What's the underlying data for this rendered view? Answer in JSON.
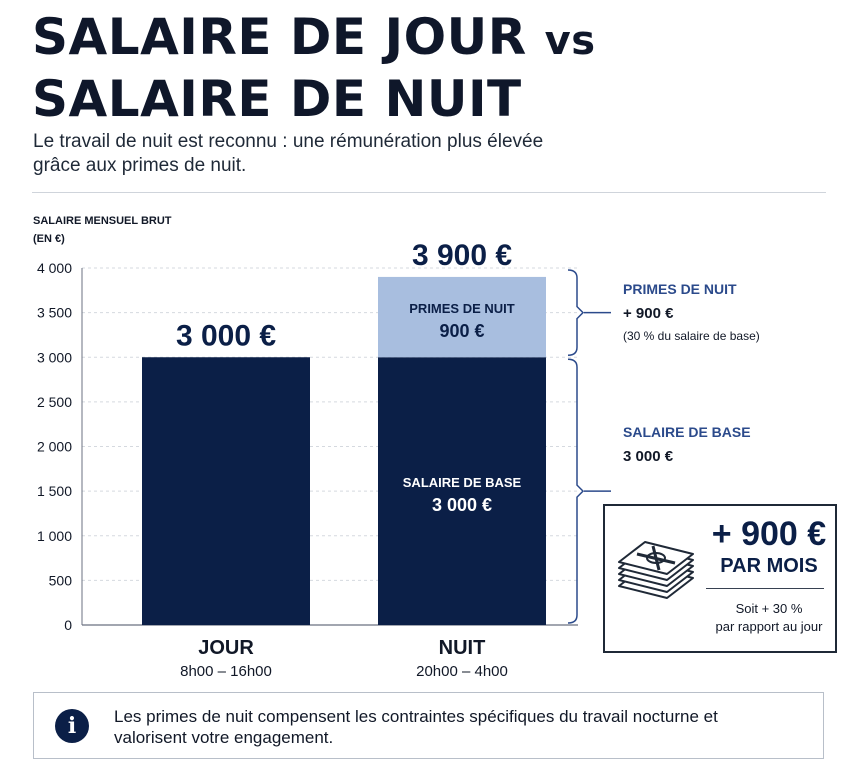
{
  "header": {
    "title_line1": "SALAIRE DE JOUR",
    "title_vs": "vs",
    "title_line2": "SALAIRE DE NUIT",
    "subtitle": "Le travail de nuit est reconnu : une rémunération plus élevée grâce aux primes de nuit."
  },
  "chart_data": {
    "type": "bar",
    "stacked": true,
    "ylabel": "SALAIRE MENSUEL BRUT",
    "yunit": "(EN €)",
    "ylim": [
      0,
      4000
    ],
    "yticks": [
      0,
      500,
      1000,
      1500,
      2000,
      2500,
      3000,
      3500,
      4000
    ],
    "ytick_labels": [
      "0",
      "500",
      "1 000",
      "1 500",
      "2 000",
      "2 500",
      "3 000",
      "3 500",
      "4 000"
    ],
    "grid": true,
    "categories": [
      "JOUR",
      "NUIT"
    ],
    "category_sublabels": [
      "8h00 – 16h00",
      "20h00 – 4h00"
    ],
    "totals": [
      "3 000 €",
      "3 900 €"
    ],
    "series": [
      {
        "name": "SALAIRE DE BASE",
        "values": [
          3000,
          3000
        ],
        "color": "#0b1f47",
        "segment_labels": [
          null,
          {
            "name": "SALAIRE DE BASE",
            "value": "3 000 €"
          }
        ]
      },
      {
        "name": "PRIMES DE NUIT",
        "values": [
          0,
          900
        ],
        "color": "#a8bedf",
        "segment_labels": [
          null,
          {
            "name": "PRIMES DE NUIT",
            "value": "900 €"
          }
        ]
      }
    ],
    "annotations": [
      {
        "name": "PRIMES DE NUIT",
        "value": "+ 900 €",
        "note": "(30 % du salaire de base)",
        "range": [
          3000,
          4000
        ]
      },
      {
        "name": "SALAIRE DE BASE",
        "value": "3 000 €",
        "range": [
          0,
          3000
        ]
      }
    ]
  },
  "summary": {
    "amount": "+ 900 €",
    "unit": "PAR MOIS",
    "note_line1": "Soit + 30 %",
    "note_line2": "par rapport au jour"
  },
  "info": {
    "icon": "info-icon",
    "text": "Les primes de nuit compensent les contraintes spécifiques du travail nocturne et valorisent votre engagement."
  },
  "colors": {
    "navy": "#0b1f47",
    "light_blue": "#a8bedf",
    "annotation_blue": "#2b4a8b"
  }
}
